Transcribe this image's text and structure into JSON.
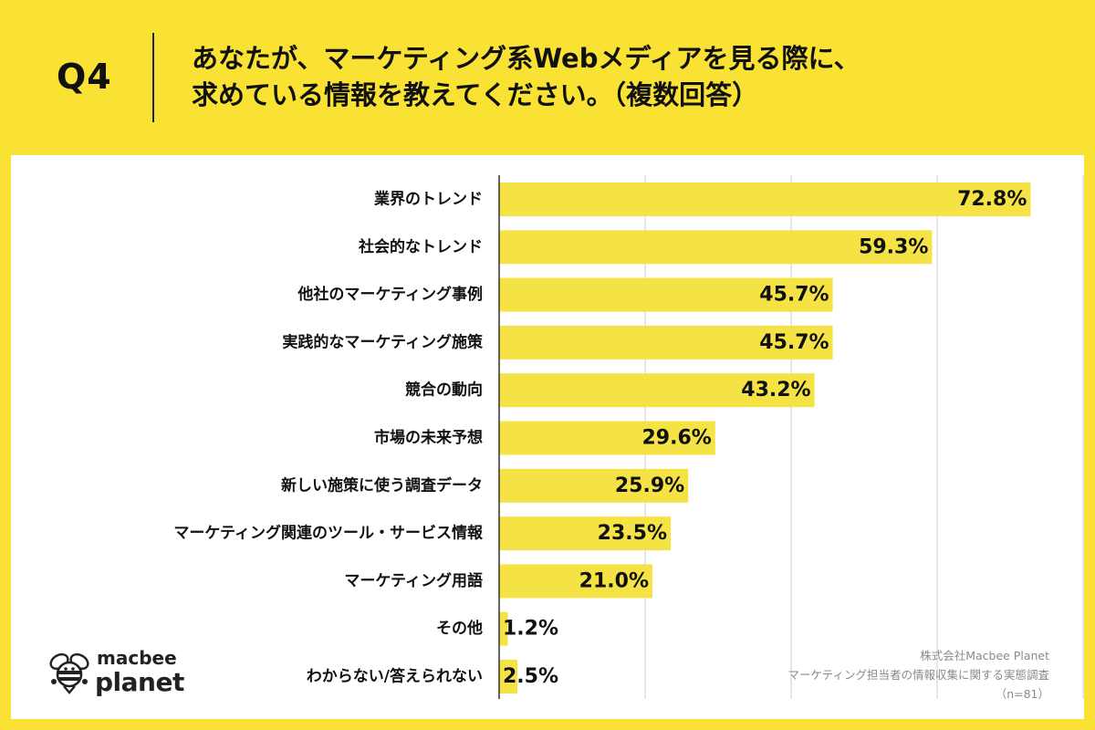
{
  "header": {
    "q_number": "Q4",
    "question_line1": "あなたが、マーケティング系Webメディアを見る際に、",
    "question_line2": "求めている情報を教えてください。（複数回答）"
  },
  "logo": {
    "word1": "macbee",
    "word2": "planet"
  },
  "source": {
    "line1": "株式会社Macbee Planet",
    "line2": "マーケティング担当者の情報収集に関する実態調査",
    "line3": "（n=81）"
  },
  "colors": {
    "background": "#F9E233",
    "bar": "#F5E346",
    "panel": "#FFFFFF",
    "grid": "#CCCCCC"
  },
  "chart_data": {
    "type": "bar",
    "orientation": "horizontal",
    "categories": [
      "業界のトレンド",
      "社会的なトレンド",
      "他社のマーケティング事例",
      "実践的なマーケティング施策",
      "競合の動向",
      "市場の未来予想",
      "新しい施策に使う調査データ",
      "マーケティング関連のツール・サービス情報",
      "マーケティング用語",
      "その他",
      "わからない/答えられない"
    ],
    "values": [
      72.8,
      59.3,
      45.7,
      45.7,
      43.2,
      29.6,
      25.9,
      23.5,
      21.0,
      1.2,
      2.5
    ],
    "value_labels": [
      "72.8%",
      "59.3%",
      "45.7%",
      "45.7%",
      "43.2%",
      "29.6%",
      "25.9%",
      "23.5%",
      "21.0%",
      "1.2%",
      "2.5%"
    ],
    "xlim": [
      0,
      80
    ],
    "grid": true,
    "legend": "none"
  }
}
